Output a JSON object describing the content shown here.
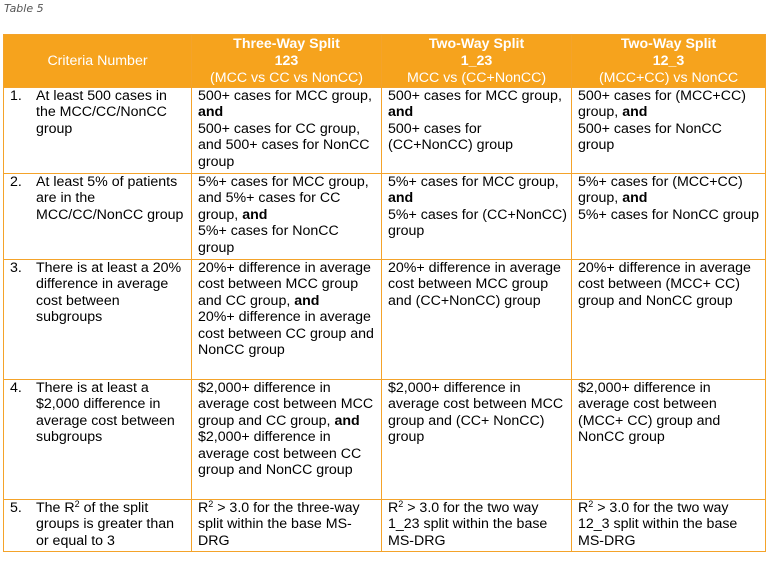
{
  "caption": "Table 5",
  "headers": {
    "criteria": "Criteria Number",
    "col1": {
      "title": "Three-Way Split",
      "code": "123",
      "desc": "(MCC vs CC vs NonCC)"
    },
    "col2": {
      "title": "Two-Way Split",
      "code": "1_23",
      "desc": "MCC vs (CC+NonCC)"
    },
    "col3": {
      "title": "Two-Way Split",
      "code": "12_3",
      "desc": "(MCC+CC) vs NonCC"
    }
  },
  "rows": [
    {
      "num": "1.",
      "criteria": "At least 500 cases in the MCC/CC/NonCC group",
      "c1": {
        "a": "500+ cases for MCC group,",
        "and1": "and",
        "b": "500+ cases for CC group, and 500+ cases for NonCC group"
      },
      "c2": {
        "a": "500+ cases for MCC group,",
        "and1": "and",
        "b": "500+ cases for (CC+NonCC) group"
      },
      "c3": {
        "a": "500+ cases for (MCC+CC) group,",
        "and1": "and",
        "b": "500+ cases for NonCC group"
      }
    },
    {
      "num": "2.",
      "criteria": "At least 5% of patients are in the MCC/CC/NonCC group",
      "c1": {
        "a": "5%+ cases for MCC group, and 5%+ cases for CC group,",
        "and1": "and",
        "b": "5%+ cases for NonCC group"
      },
      "c2": {
        "a": "5%+ cases for MCC group,",
        "and1": "and",
        "b": "5%+ cases for (CC+NonCC) group"
      },
      "c3": {
        "a": "5%+ cases for (MCC+CC) group,",
        "and1": "and",
        "b": "5%+ cases for NonCC group"
      }
    },
    {
      "num": "3.",
      "criteria": "There is at least a 20% difference in average cost between subgroups",
      "c1": {
        "a": "20%+ difference in average cost between MCC group and CC group,",
        "and1": "and",
        "b": "20%+ difference in average cost between CC group and NonCC group"
      },
      "c2": {
        "a": "20%+ difference in average cost between MCC group and (CC+NonCC) group"
      },
      "c3": {
        "a": "20%+ difference in average cost between (MCC+ CC) group and NonCC group"
      }
    },
    {
      "num": "4.",
      "criteria": "There is at least a $2,000 difference in average cost between subgroups",
      "c1": {
        "a": "$2,000+ difference in average cost between MCC group and CC group,",
        "and1": "and",
        "b": "$2,000+ difference in average cost between CC group and NonCC group"
      },
      "c2": {
        "a": "$2,000+ difference in average cost between MCC group and (CC+ NonCC) group"
      },
      "c3": {
        "a": "$2,000+ difference in average cost between (MCC+ CC) group and NonCC group"
      }
    },
    {
      "num": "5.",
      "criteria_pre": "The R",
      "criteria_sup": "2",
      "criteria_post": " of the split groups is greater than or equal to 3",
      "c1": {
        "pre": "R",
        "sup": "2",
        "post": " > 3.0 for the three-way split within the base MS-DRG"
      },
      "c2": {
        "pre": "R",
        "sup": "2",
        "post": " > 3.0 for the two way 1_23 split within the base MS-DRG"
      },
      "c3": {
        "pre": "R",
        "sup": "2",
        "post": " > 3.0 for the two way 12_3 split within the base MS-DRG"
      }
    }
  ]
}
